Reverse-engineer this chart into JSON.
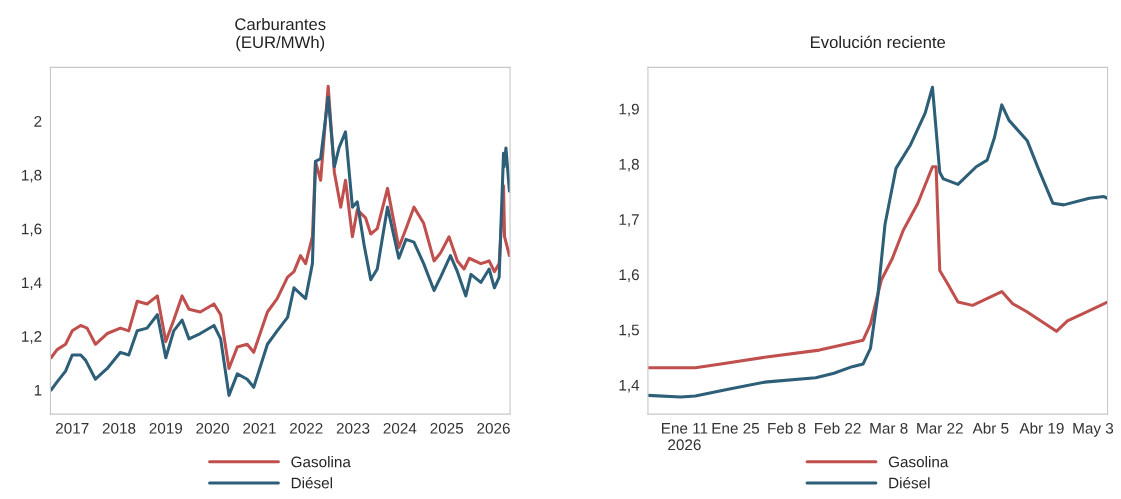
{
  "chart_data": [
    {
      "type": "line",
      "title": "Carburantes\n(EUR/MWh)",
      "legend": "bottom",
      "grid": false,
      "xlim": [
        "2016-07-15",
        "2026-05-10"
      ],
      "xticks": [
        {
          "value": "2017-01-01",
          "label": "2017"
        },
        {
          "value": "2018-01-01",
          "label": "2018"
        },
        {
          "value": "2019-01-01",
          "label": "2019"
        },
        {
          "value": "2020-01-01",
          "label": "2020"
        },
        {
          "value": "2021-01-01",
          "label": "2021"
        },
        {
          "value": "2022-01-01",
          "label": "2022"
        },
        {
          "value": "2023-01-01",
          "label": "2023"
        },
        {
          "value": "2024-01-01",
          "label": "2024"
        },
        {
          "value": "2025-01-01",
          "label": "2025"
        },
        {
          "value": "2026-01-01",
          "label": "2026"
        }
      ],
      "ylim": [
        0.91,
        2.2
      ],
      "yticks": [
        1,
        {
          "value": 1.2,
          "label": "1,2"
        },
        {
          "value": 1.4,
          "label": "1,4"
        },
        {
          "value": 1.6,
          "label": "1,6"
        },
        {
          "value": 1.8,
          "label": "1,8"
        },
        2
      ],
      "series": [
        {
          "name": "Gasolina",
          "color": "#c0504d",
          "x": [
            "2016-07-20",
            "2016-09-05",
            "2016-11-10",
            "2017-01-01",
            "2017-03-08",
            "2017-04-27",
            "2017-07-01",
            "2017-10-01",
            "2018-01-12",
            "2018-03-18",
            "2018-05-23",
            "2018-08-08",
            "2018-10-27",
            "2019-01-01",
            "2019-03-04",
            "2019-05-08",
            "2019-07-01",
            "2019-09-27",
            "2020-01-12",
            "2020-03-04",
            "2020-05-08",
            "2020-07-12",
            "2020-09-27",
            "2020-11-17",
            "2021-03-04",
            "2021-05-19",
            "2021-08-08",
            "2021-09-27",
            "2021-11-17",
            "2021-12-27",
            "2022-02-18",
            "2022-03-14",
            "2022-04-23",
            "2022-06-21",
            "2022-08-08",
            "2022-09-27",
            "2022-11-03",
            "2022-12-27",
            "2023-02-03",
            "2023-04-09",
            "2023-05-19",
            "2023-07-09",
            "2023-09-27",
            "2023-12-24",
            "2024-02-18",
            "2024-04-20",
            "2024-07-05",
            "2024-09-24",
            "2024-11-14",
            "2025-01-19",
            "2025-03-25",
            "2025-05-16",
            "2025-06-25",
            "2025-09-24",
            "2025-11-28",
            "2026-01-08",
            "2026-02-14",
            "2026-03-20",
            "2026-03-28",
            "2026-05-05"
          ],
          "values": [
            1.12,
            1.15,
            1.17,
            1.22,
            1.24,
            1.23,
            1.17,
            1.21,
            1.23,
            1.22,
            1.33,
            1.32,
            1.35,
            1.18,
            1.26,
            1.35,
            1.3,
            1.29,
            1.32,
            1.28,
            1.08,
            1.16,
            1.17,
            1.14,
            1.29,
            1.34,
            1.42,
            1.44,
            1.5,
            1.47,
            1.57,
            1.85,
            1.78,
            2.13,
            1.81,
            1.68,
            1.78,
            1.57,
            1.67,
            1.64,
            1.58,
            1.6,
            1.75,
            1.53,
            1.6,
            1.68,
            1.62,
            1.48,
            1.51,
            1.57,
            1.48,
            1.45,
            1.49,
            1.47,
            1.48,
            1.44,
            1.47,
            1.76,
            1.57,
            1.5
          ]
        },
        {
          "name": "Diésel",
          "color": "#2e5f78",
          "x": [
            "2016-07-20",
            "2016-09-05",
            "2016-11-10",
            "2017-01-01",
            "2017-03-08",
            "2017-04-16",
            "2017-07-01",
            "2017-10-01",
            "2018-01-12",
            "2018-03-18",
            "2018-05-23",
            "2018-08-08",
            "2018-10-27",
            "2019-01-01",
            "2019-03-04",
            "2019-05-08",
            "2019-07-01",
            "2019-09-27",
            "2020-01-12",
            "2020-03-04",
            "2020-05-08",
            "2020-07-12",
            "2020-09-27",
            "2020-11-17",
            "2021-03-04",
            "2021-05-19",
            "2021-08-08",
            "2021-09-27",
            "2021-12-27",
            "2022-02-18",
            "2022-03-14",
            "2022-04-23",
            "2022-06-21",
            "2022-08-08",
            "2022-09-13",
            "2022-11-03",
            "2022-12-27",
            "2023-02-03",
            "2023-03-28",
            "2023-05-19",
            "2023-07-09",
            "2023-09-27",
            "2023-12-24",
            "2024-02-18",
            "2024-04-20",
            "2024-07-05",
            "2024-09-24",
            "2024-11-14",
            "2025-01-30",
            "2025-03-25",
            "2025-05-30",
            "2025-07-09",
            "2025-09-24",
            "2025-11-28",
            "2026-01-08",
            "2026-02-14",
            "2026-03-20",
            "2026-03-24",
            "2026-04-08",
            "2026-05-05"
          ],
          "values": [
            1.0,
            1.03,
            1.07,
            1.13,
            1.13,
            1.11,
            1.04,
            1.08,
            1.14,
            1.13,
            1.22,
            1.23,
            1.28,
            1.12,
            1.22,
            1.26,
            1.19,
            1.21,
            1.24,
            1.19,
            0.98,
            1.06,
            1.04,
            1.01,
            1.17,
            1.22,
            1.27,
            1.38,
            1.34,
            1.47,
            1.85,
            1.86,
            2.09,
            1.83,
            1.9,
            1.96,
            1.68,
            1.7,
            1.54,
            1.41,
            1.45,
            1.68,
            1.49,
            1.56,
            1.55,
            1.47,
            1.37,
            1.42,
            1.5,
            1.44,
            1.35,
            1.43,
            1.4,
            1.45,
            1.38,
            1.42,
            1.88,
            1.83,
            1.9,
            1.74
          ]
        }
      ]
    },
    {
      "type": "line",
      "title": "Evolución reciente",
      "legend": "bottom",
      "grid": false,
      "xlim": [
        "2026-01-01",
        "2026-05-07"
      ],
      "xticks": [
        {
          "value": "2026-01-11",
          "label": "Ene 11\n2026"
        },
        {
          "value": "2026-01-25",
          "label": "Ene 25"
        },
        {
          "value": "2026-02-08",
          "label": "Feb 8"
        },
        {
          "value": "2026-02-22",
          "label": "Feb 22"
        },
        {
          "value": "2026-03-08",
          "label": "Mar 8"
        },
        {
          "value": "2026-03-22",
          "label": "Mar 22"
        },
        {
          "value": "2026-04-05",
          "label": "Abr 5"
        },
        {
          "value": "2026-04-19",
          "label": "Abr 19"
        },
        {
          "value": "2026-05-03",
          "label": "May 3"
        }
      ],
      "ylim": [
        1.347,
        1.975
      ],
      "yticks": [
        {
          "value": 1.4,
          "label": "1,4"
        },
        {
          "value": 1.5,
          "label": "1,5"
        },
        {
          "value": 1.6,
          "label": "1,6"
        },
        {
          "value": 1.7,
          "label": "1,7"
        },
        {
          "value": 1.8,
          "label": "1,8"
        },
        {
          "value": 1.9,
          "label": "1,9"
        }
      ],
      "series": [
        {
          "name": "Gasolina",
          "color": "#c0504d",
          "x": [
            "2026-01-01",
            "2026-01-14",
            "2026-01-21",
            "2026-02-02",
            "2026-02-17",
            "2026-02-25",
            "2026-03-01",
            "2026-03-03",
            "2026-03-06",
            "2026-03-09",
            "2026-03-12",
            "2026-03-16",
            "2026-03-20",
            "2026-03-21",
            "2026-03-22",
            "2026-03-24",
            "2026-03-27",
            "2026-03-31",
            "2026-04-08",
            "2026-04-11",
            "2026-04-15",
            "2026-04-23",
            "2026-04-26",
            "2026-04-30",
            "2026-05-07"
          ],
          "values": [
            1.431,
            1.431,
            1.438,
            1.45,
            1.463,
            1.475,
            1.481,
            1.51,
            1.59,
            1.629,
            1.68,
            1.729,
            1.795,
            1.795,
            1.607,
            1.585,
            1.55,
            1.544,
            1.569,
            1.547,
            1.532,
            1.497,
            1.516,
            1.528,
            1.55
          ]
        },
        {
          "name": "Diésel",
          "color": "#2e5f78",
          "x": [
            "2026-01-01",
            "2026-01-10",
            "2026-01-14",
            "2026-01-23",
            "2026-02-02",
            "2026-02-16",
            "2026-02-21",
            "2026-02-26",
            "2026-03-01",
            "2026-03-03",
            "2026-03-05",
            "2026-03-07",
            "2026-03-10",
            "2026-03-14",
            "2026-03-18",
            "2026-03-20",
            "2026-03-22",
            "2026-03-23",
            "2026-03-27",
            "2026-04-01",
            "2026-04-04",
            "2026-04-06",
            "2026-04-08",
            "2026-04-10",
            "2026-04-15",
            "2026-04-18",
            "2026-04-22",
            "2026-04-25",
            "2026-05-02",
            "2026-05-06",
            "2026-05-07"
          ],
          "values": [
            1.381,
            1.378,
            1.38,
            1.392,
            1.405,
            1.413,
            1.421,
            1.433,
            1.438,
            1.466,
            1.56,
            1.691,
            1.792,
            1.835,
            1.892,
            1.939,
            1.785,
            1.773,
            1.763,
            1.795,
            1.807,
            1.848,
            1.907,
            1.879,
            1.842,
            1.792,
            1.729,
            1.726,
            1.738,
            1.741,
            1.738
          ]
        }
      ]
    }
  ]
}
